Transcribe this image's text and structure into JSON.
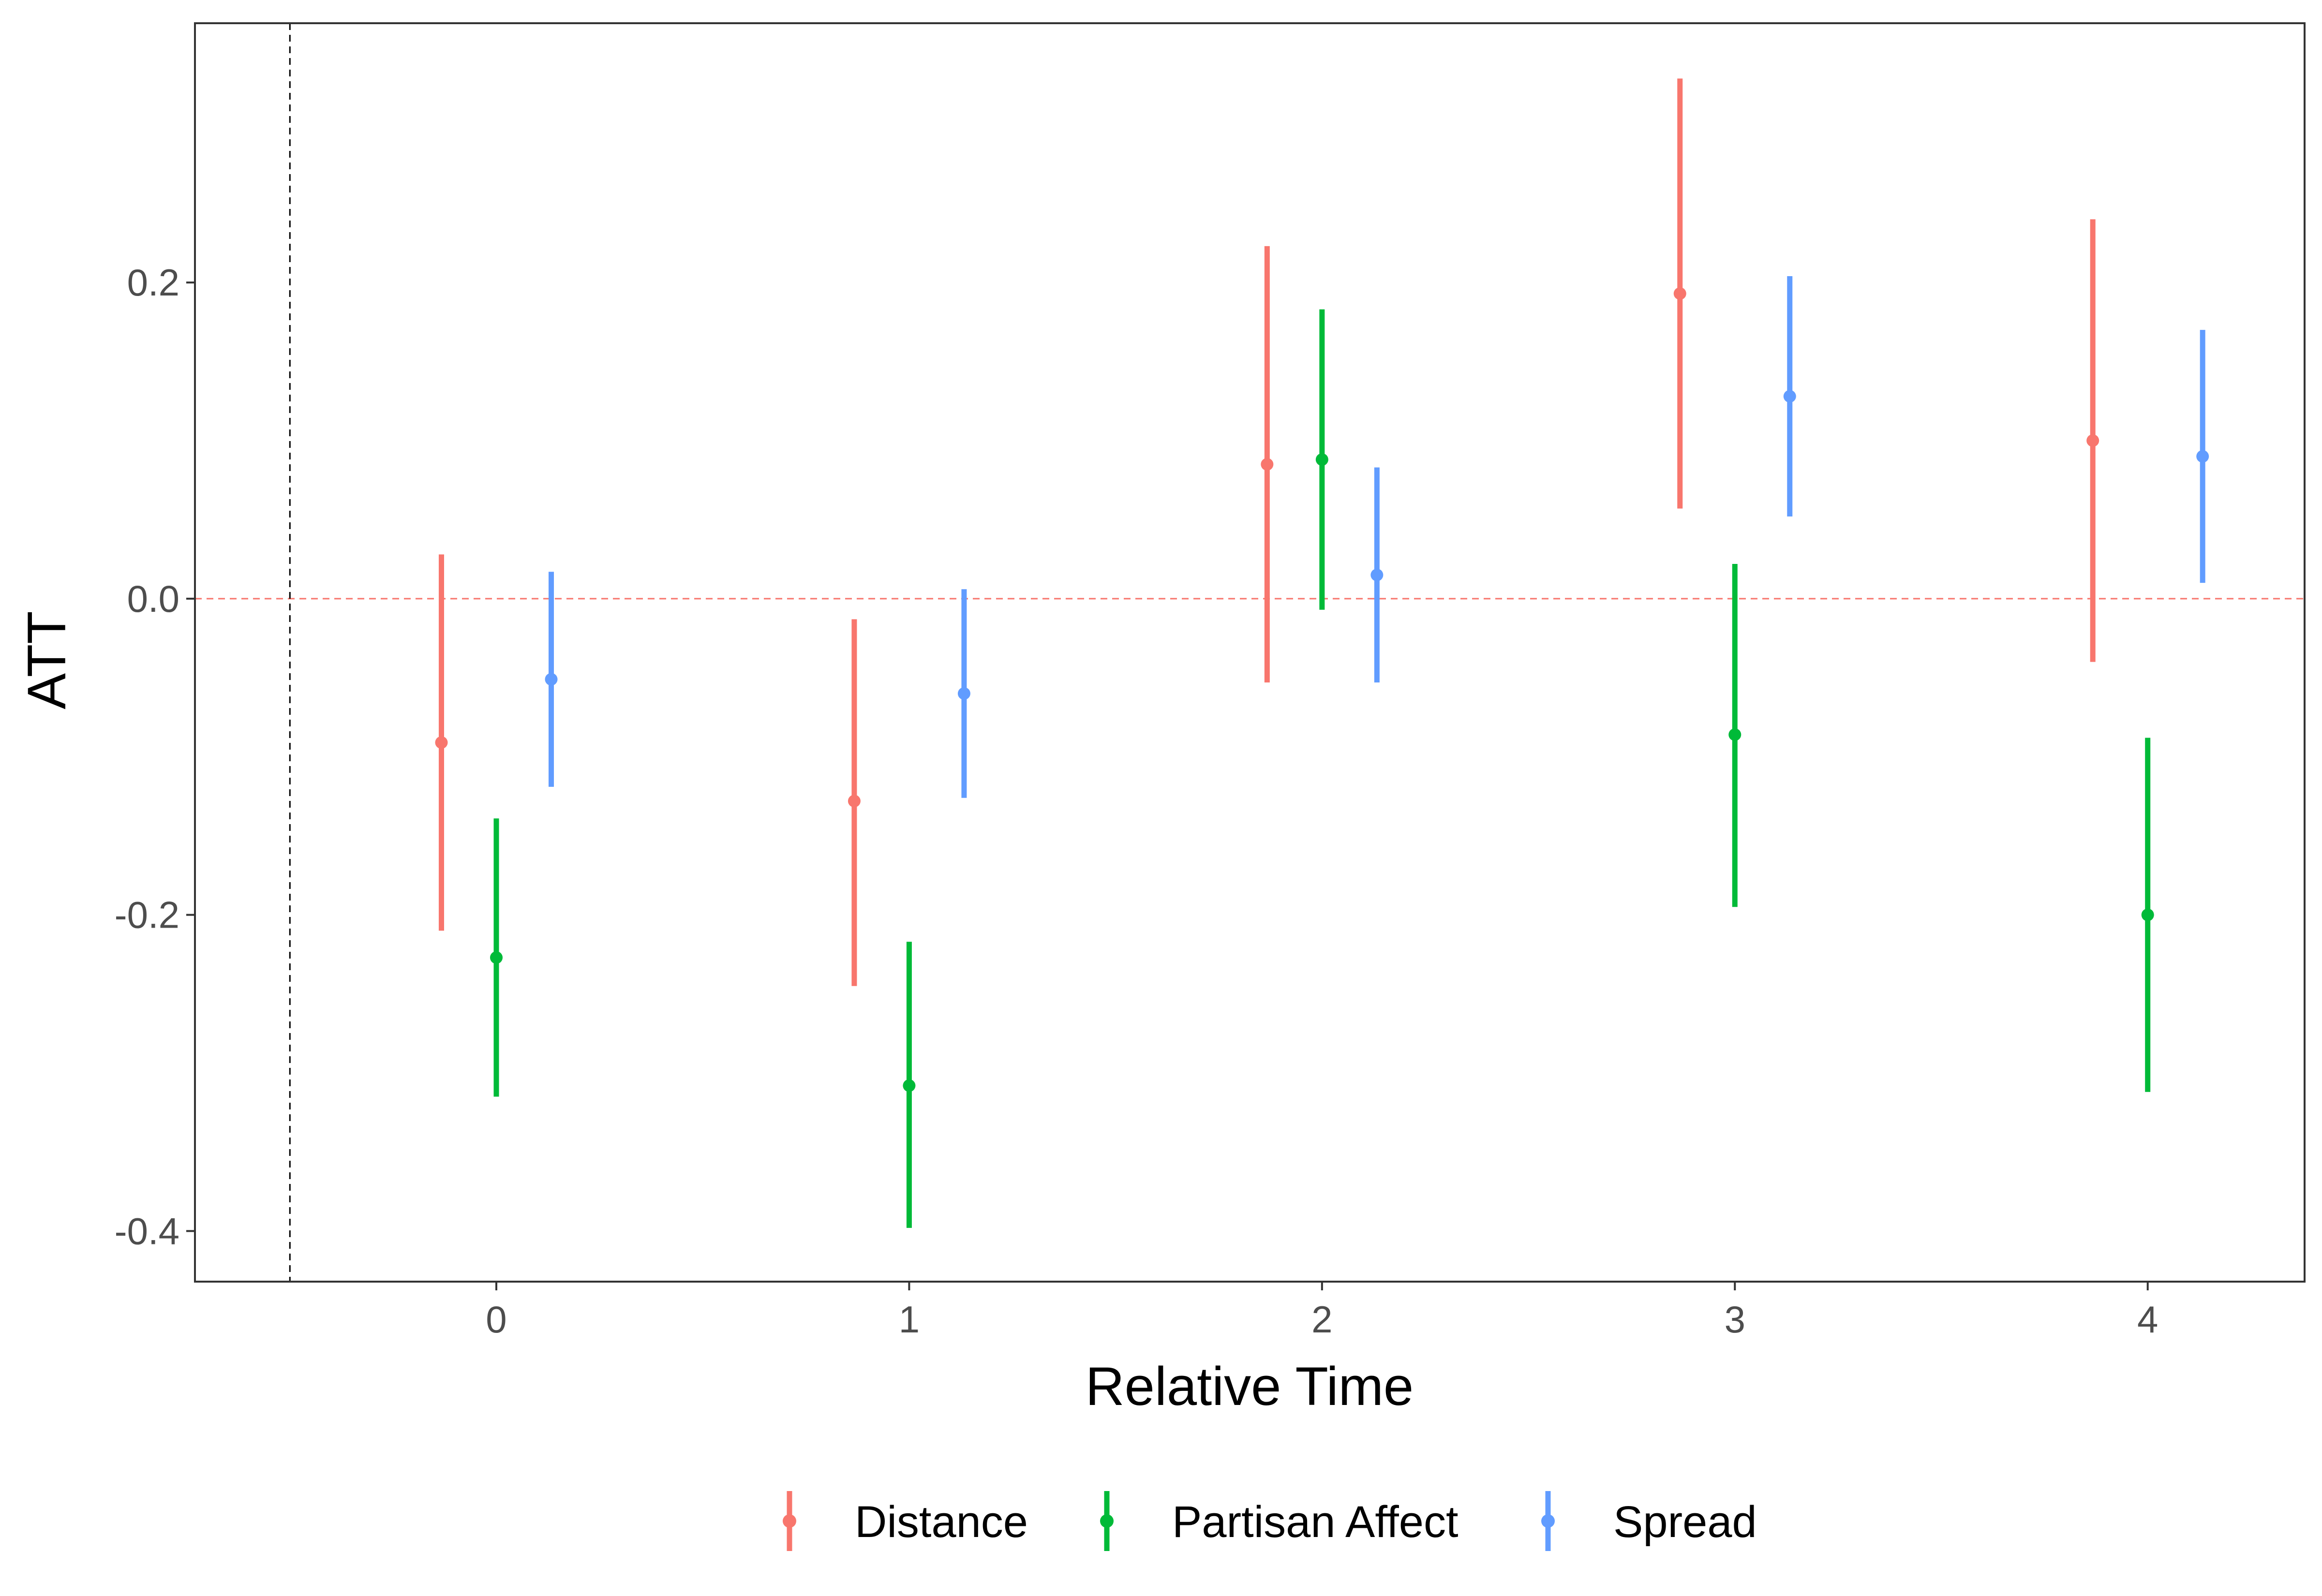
{
  "chart_data": {
    "type": "errorbar",
    "xlabel": "Relative Time",
    "ylabel": "ATT",
    "xlim": [
      -0.73,
      4.38
    ],
    "ylim": [
      -0.432,
      0.364
    ],
    "x_ticks": [
      0,
      1,
      2,
      3,
      4
    ],
    "x_tick_labels": [
      "0",
      "1",
      "2",
      "3",
      "4"
    ],
    "y_ticks": [
      -0.4,
      -0.2,
      0.0,
      0.2
    ],
    "y_tick_labels": [
      "-0.4",
      "-0.2",
      "0.0",
      "0.2"
    ],
    "grid": false,
    "dodge": 0.133,
    "legend": {
      "position": "bottom"
    },
    "reference_lines": [
      {
        "axis": "y",
        "value": 0,
        "style": "dashed",
        "color": "#F8766D"
      },
      {
        "axis": "x",
        "value": -0.5,
        "style": "dashed",
        "color": "#000000"
      }
    ],
    "categories": [
      0,
      1,
      2,
      3,
      4
    ],
    "series": [
      {
        "name": "Distance",
        "color": "#F8766D",
        "estimates": [
          -0.091,
          -0.128,
          0.085,
          0.193,
          0.1
        ],
        "lower": [
          -0.21,
          -0.245,
          -0.053,
          0.057,
          -0.04
        ],
        "upper": [
          0.028,
          -0.013,
          0.223,
          0.329,
          0.24
        ]
      },
      {
        "name": "Partisan Affect",
        "color": "#00BA38",
        "estimates": [
          -0.227,
          -0.308,
          0.088,
          -0.086,
          -0.2
        ],
        "lower": [
          -0.315,
          -0.398,
          -0.007,
          -0.195,
          -0.312
        ],
        "upper": [
          -0.139,
          -0.217,
          0.183,
          0.022,
          -0.088
        ]
      },
      {
        "name": "Spread",
        "color": "#619CFF",
        "estimates": [
          -0.051,
          -0.06,
          0.015,
          0.128,
          0.09
        ],
        "lower": [
          -0.119,
          -0.126,
          -0.053,
          0.052,
          0.01
        ],
        "upper": [
          0.017,
          0.006,
          0.083,
          0.204,
          0.17
        ]
      }
    ]
  }
}
